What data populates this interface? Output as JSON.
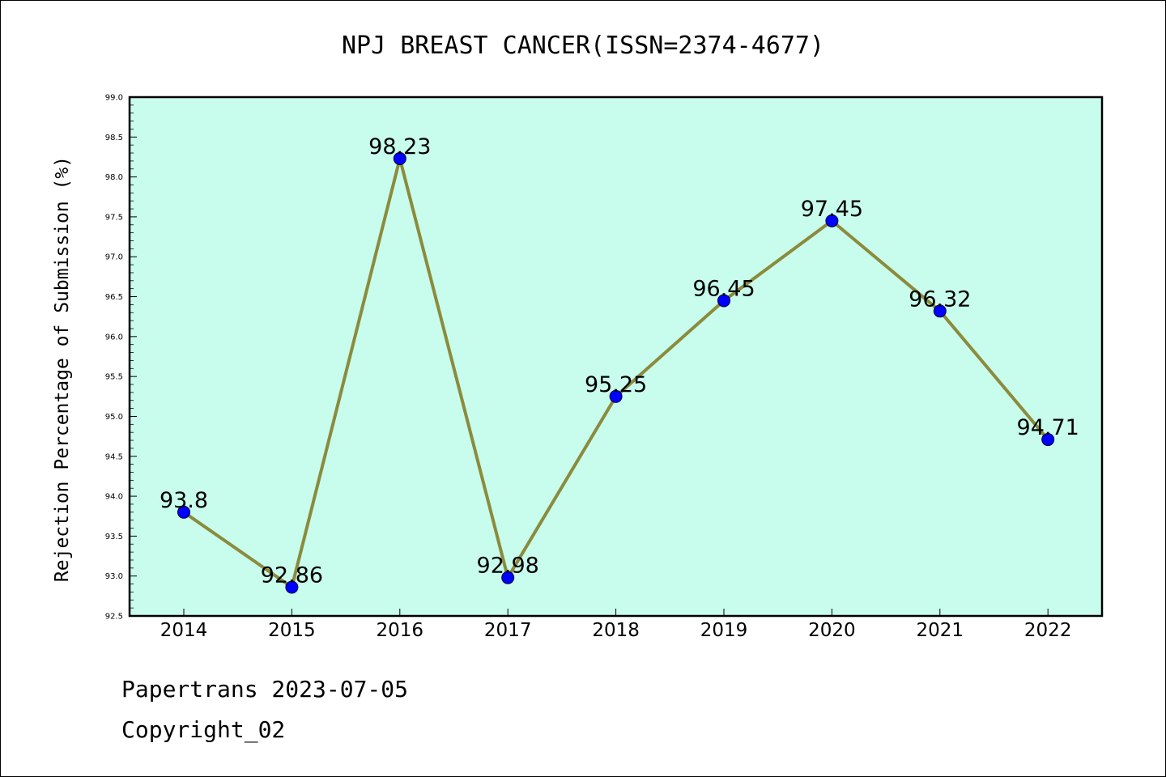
{
  "chart_data": {
    "type": "line",
    "title": "NPJ BREAST CANCER(ISSN=2374-4677)",
    "xlabel": "",
    "ylabel": "Rejection Percentage of Submission (%)",
    "categories": [
      "2014",
      "2015",
      "2016",
      "2017",
      "2018",
      "2019",
      "2020",
      "2021",
      "2022"
    ],
    "series": [
      {
        "values": [
          93.8,
          92.86,
          98.23,
          92.98,
          95.25,
          96.45,
          97.45,
          96.32,
          94.71
        ],
        "labels": [
          "93.8",
          "92.86",
          "98.23",
          "92.98",
          "95.25",
          "96.45",
          "97.45",
          "96.32",
          "94.71"
        ]
      }
    ],
    "ylim": [
      92.5,
      99.0
    ],
    "yticks": [
      "92.5",
      "93.0",
      "93.5",
      "94.0",
      "94.5",
      "95.0",
      "95.5",
      "96.0",
      "96.5",
      "97.0",
      "97.5",
      "98.0",
      "98.5",
      "99.0"
    ],
    "grid": false,
    "colors": {
      "background": "#c8fcec",
      "line": "#8b8b3c",
      "marker": "#0000ff"
    }
  },
  "footer": {
    "source": "Papertrans 2023-07-05",
    "copyright": "Copyright_02"
  }
}
